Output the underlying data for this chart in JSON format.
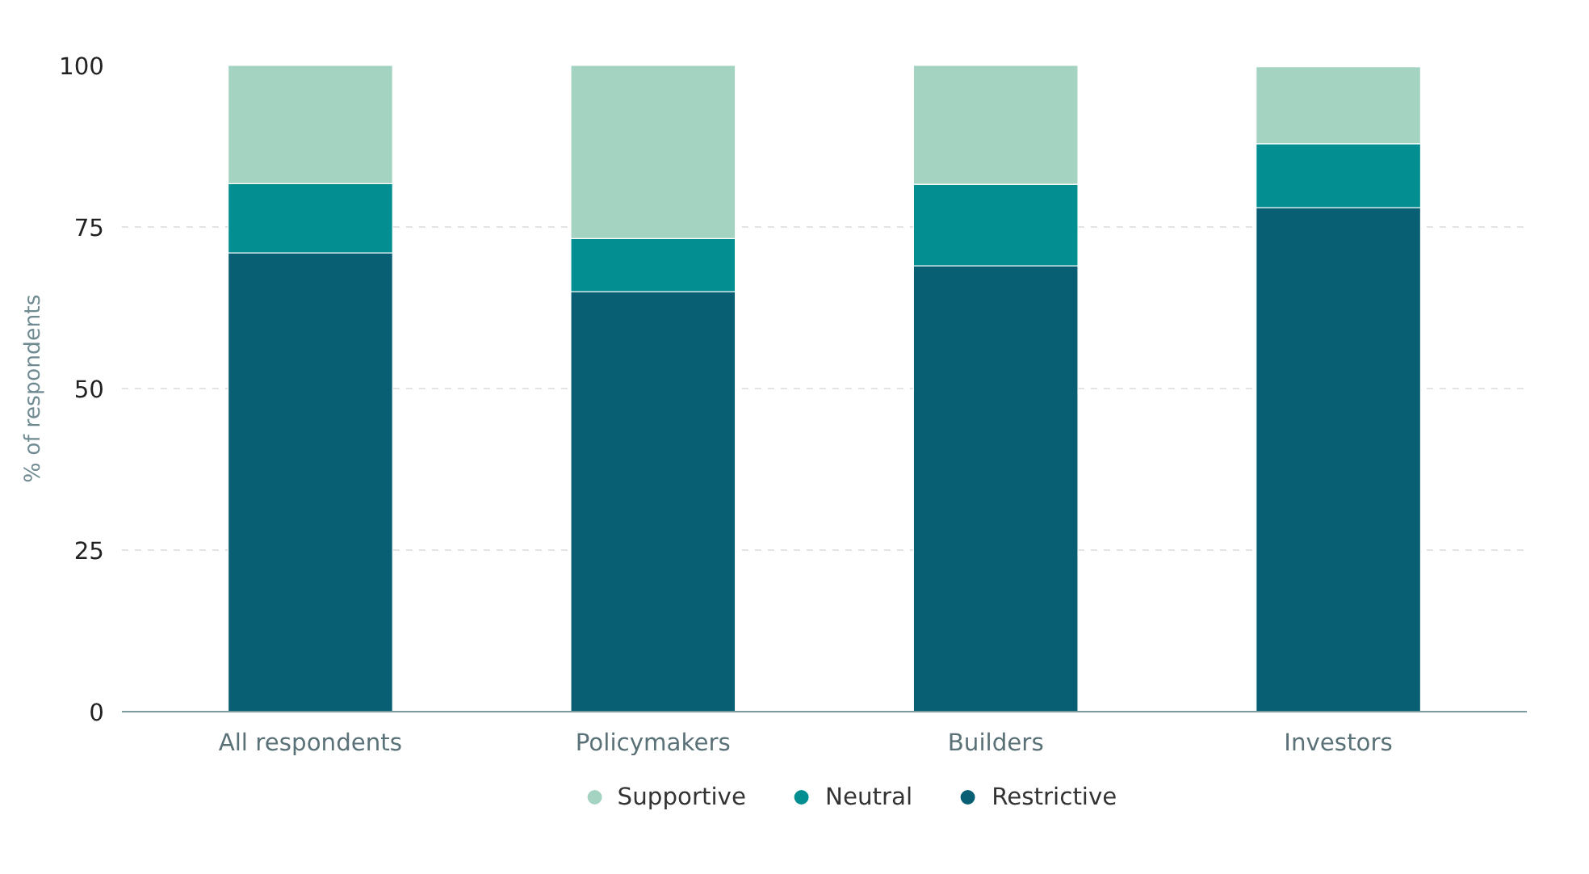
{
  "chart_data": {
    "type": "bar",
    "stacked": true,
    "ylabel": "% of respondents",
    "categories": [
      "All respondents",
      "Policymakers",
      "Builders",
      "Investors"
    ],
    "series": [
      {
        "name": "Restrictive",
        "color": "#085e72",
        "values": [
          71,
          65,
          69,
          78
        ]
      },
      {
        "name": "Neutral",
        "color": "#038f91",
        "values": [
          10.7,
          8.2,
          12.6,
          9.9
        ]
      },
      {
        "name": "Supportive",
        "color": "#a5d3c2",
        "values": [
          18.3,
          26.8,
          18.4,
          11.9
        ]
      }
    ],
    "ylim": [
      0,
      100
    ],
    "yticks": [
      0,
      25,
      50,
      75,
      100
    ],
    "grid": "y",
    "legend": "bottom",
    "marker": "circle"
  }
}
